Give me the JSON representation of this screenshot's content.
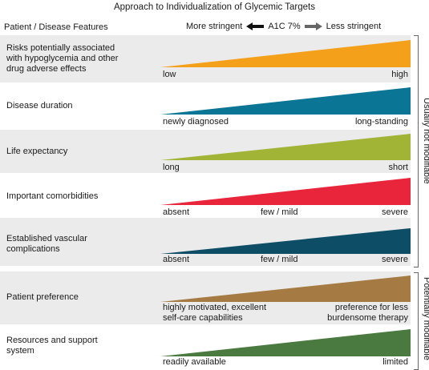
{
  "title": "Approach to Individualization of Glycemic Targets",
  "header": {
    "left": "Patient / Disease Features",
    "more": "More stringent",
    "center": "A1C 7%",
    "less": "Less stringent"
  },
  "rows": [
    {
      "label": "Risks potentially associated with hypoglycemia and other drug adverse effects",
      "color": "#f5a01a",
      "low": "low",
      "mid": "",
      "high": "high"
    },
    {
      "label": "Disease duration",
      "color": "#0b7595",
      "low": "newly diagnosed",
      "mid": "",
      "high": "long-standing"
    },
    {
      "label": "Life expectancy",
      "color": "#a2b436",
      "low": "long",
      "mid": "",
      "high": "short"
    },
    {
      "label": "Important comorbidities",
      "color": "#e8253a",
      "low": "absent",
      "mid": "few / mild",
      "high": "severe"
    },
    {
      "label": "Established vascular complications",
      "color": "#0d4e66",
      "low": "absent",
      "mid": "few / mild",
      "high": "severe"
    },
    {
      "label": "Patient preference",
      "color": "#a57a43",
      "low": "highly motivated, excellent self-care capabilities",
      "mid": "",
      "high": "preference for less burdensome therapy"
    },
    {
      "label": "Resources and support system",
      "color": "#4a7a3f",
      "low": "readily available",
      "mid": "",
      "high": "limited"
    }
  ],
  "groups": {
    "not_modifiable": "Usually not modifiable",
    "modifiable": "Potentially modifiable"
  }
}
